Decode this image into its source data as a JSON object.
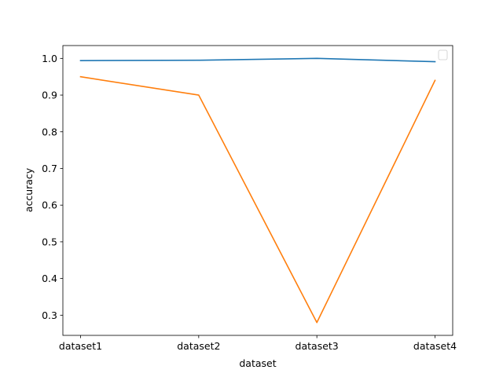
{
  "chart_data": {
    "type": "line",
    "title": "",
    "xlabel": "dataset",
    "ylabel": "accuracy",
    "categories": [
      "dataset1",
      "dataset2",
      "dataset3",
      "dataset4"
    ],
    "ylim": [
      0.245,
      1.035
    ],
    "yticks": [
      0.3,
      0.4,
      0.5,
      0.6,
      0.7,
      0.8,
      0.9,
      1.0
    ],
    "ytick_labels": [
      "0.3",
      "0.4",
      "0.5",
      "0.6",
      "0.7",
      "0.8",
      "0.9",
      "1.0"
    ],
    "grid": false,
    "legend": {
      "position": "top-right",
      "entries": []
    },
    "series": [
      {
        "values": [
          0.994,
          0.995,
          1.0,
          0.991
        ],
        "color": "#1f77b4"
      },
      {
        "values": [
          0.95,
          0.9,
          0.28,
          0.94
        ],
        "color": "#ff7f0e"
      }
    ]
  }
}
